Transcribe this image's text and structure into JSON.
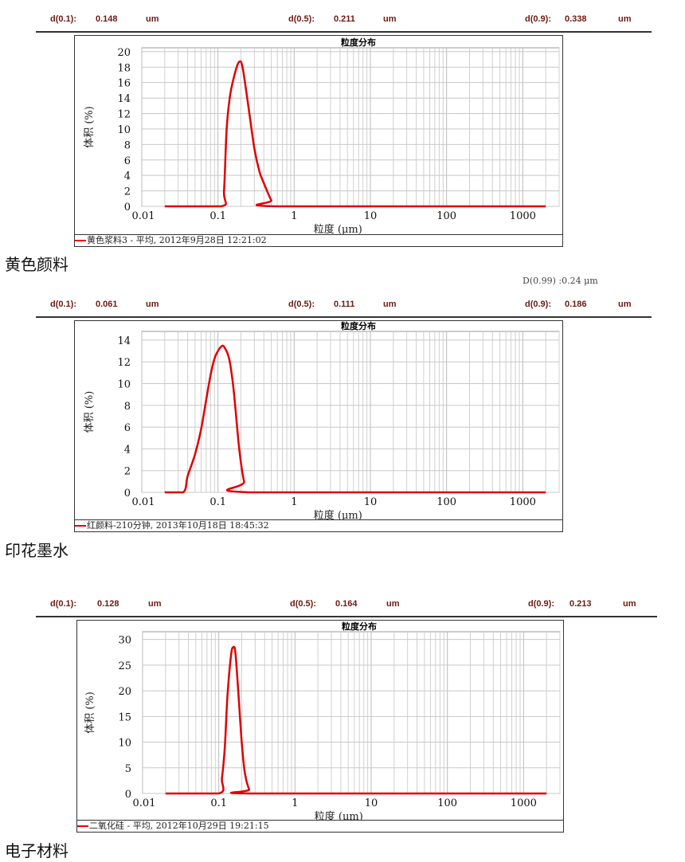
{
  "line_color": "#e00000",
  "panels": [
    {
      "stats": {
        "d10_label": "d(0.1):",
        "d10": "0.148",
        "d50_label": "d(0.5):",
        "d50": "0.211",
        "d90_label": "d(0.9):",
        "d90": "0.338",
        "unit": "um"
      },
      "legend": "黄色浆料3 - 平均, 2012年9月28日 12:21:02",
      "caption": "黄色颜料"
    },
    {
      "d99": "D(0.99) :0.24 μm",
      "stats": {
        "d10_label": "d(0.1):",
        "d10": "0.061",
        "d50_label": "d(0.5):",
        "d50": "0.111",
        "d90_label": "d(0.9):",
        "d90": "0.186",
        "unit": "um"
      },
      "legend": "红颜料-210分钟, 2013年10月18日 18:45:32",
      "caption": "印花墨水"
    },
    {
      "stats": {
        "d10_label": "d(0.1):",
        "d10": "0.128",
        "d50_label": "d(0.5):",
        "d50": "0.164",
        "d90_label": "d(0.9):",
        "d90": "0.213",
        "unit": "um"
      },
      "legend": "二氧化硅 - 平均, 2012年10月29日 19:21:15",
      "caption": "电子材料"
    }
  ],
  "chart_data": [
    {
      "type": "line",
      "title": "粒度分布",
      "xlabel": "粒度 (μm)",
      "ylabel": "体积 (%)",
      "xscale": "log",
      "grid": true,
      "xlim": [
        0.01,
        3000
      ],
      "ylim": [
        0,
        20.5
      ],
      "xticks": [
        "0.01",
        "0.1",
        "1",
        "10",
        "100",
        "1000"
      ],
      "yticks": [
        0,
        2,
        4,
        6,
        8,
        10,
        12,
        14,
        16,
        18,
        20
      ],
      "x": [
        0.02,
        0.11,
        0.12,
        0.13,
        0.145,
        0.17,
        0.19,
        0.21,
        0.25,
        0.3,
        0.35,
        0.4,
        0.5,
        0.6,
        2000
      ],
      "y": [
        0,
        0,
        2,
        10,
        14.5,
        17.5,
        18.7,
        18,
        13,
        7.5,
        4.5,
        3,
        0.8,
        0,
        0
      ]
    },
    {
      "type": "line",
      "title": "粒度分布",
      "xlabel": "粒度 (μm)",
      "ylabel": "体积 (%)",
      "xscale": "log",
      "grid": true,
      "xlim": [
        0.01,
        3000
      ],
      "ylim": [
        0,
        14.8
      ],
      "xticks": [
        "0.01",
        "0.1",
        "1",
        "10",
        "100",
        "1000"
      ],
      "yticks": [
        0,
        2,
        4,
        6,
        8,
        10,
        12,
        14
      ],
      "x": [
        0.02,
        0.035,
        0.04,
        0.05,
        0.06,
        0.07,
        0.08,
        0.09,
        0.1,
        0.11,
        0.12,
        0.14,
        0.16,
        0.19,
        0.22,
        0.26,
        2000
      ],
      "y": [
        0,
        0,
        1.5,
        3.5,
        5.8,
        8.5,
        10.8,
        12.3,
        13,
        13.4,
        13.4,
        12.3,
        9.5,
        4,
        1,
        0,
        0
      ]
    },
    {
      "type": "line",
      "title": "粒度分布",
      "xlabel": "粒度 (μm)",
      "ylabel": "体积 (%)",
      "xscale": "log",
      "grid": true,
      "xlim": [
        0.01,
        3000
      ],
      "ylim": [
        0,
        31.5
      ],
      "xticks": [
        "0.01",
        "0.1",
        "1",
        "10",
        "100",
        "1000"
      ],
      "yticks": [
        0,
        5,
        10,
        15,
        20,
        25,
        30
      ],
      "x": [
        0.02,
        0.1,
        0.11,
        0.12,
        0.13,
        0.145,
        0.155,
        0.165,
        0.18,
        0.2,
        0.22,
        0.25,
        0.28,
        2000
      ],
      "y": [
        0,
        0,
        3,
        9,
        19,
        27,
        28.5,
        27.5,
        20,
        10,
        4,
        0.8,
        0,
        0
      ]
    }
  ]
}
